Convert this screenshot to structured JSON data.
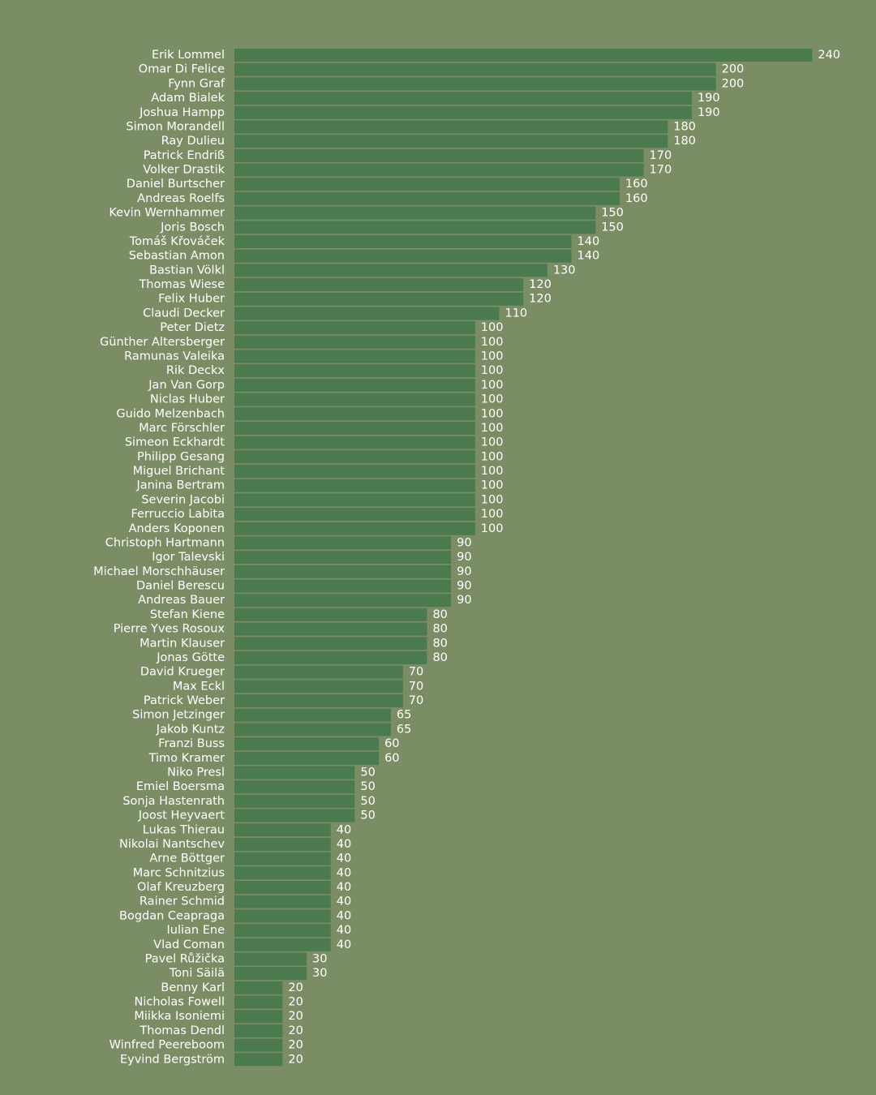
{
  "colors": {
    "background": "#7b8d65",
    "bar": "#4b7a4e",
    "text": "#ffffff"
  },
  "chart_data": {
    "type": "bar",
    "orientation": "horizontal",
    "title": "",
    "xlabel": "",
    "ylabel": "",
    "xlim": [
      0,
      240
    ],
    "grid": false,
    "legend": "none",
    "categories": [
      "Erik Lommel",
      "Omar Di Felice",
      "Fynn Graf",
      "Adam Bialek",
      "Joshua Hampp",
      "Simon Morandell",
      "Ray Dulieu",
      "Patrick Endriß",
      "Volker Drastik",
      "Daniel Burtscher",
      "Andreas Roelfs",
      "Kevin Wernhammer",
      "Joris Bosch",
      "Tomáš Křováček",
      "Sebastian Amon",
      "Bastian Völkl",
      "Thomas Wiese",
      "Felix Huber",
      "Claudi Decker",
      "Peter Dietz",
      "Günther Altersberger",
      "Ramunas Valeika",
      "Rik Deckx",
      "Jan Van Gorp",
      "Niclas Huber",
      "Guido Melzenbach",
      "Marc Förschler",
      "Simeon Eckhardt",
      "Philipp Gesang",
      "Miguel Brichant",
      "Janina Bertram",
      "Severin Jacobi",
      "Ferruccio Labita",
      "Anders Koponen",
      "Christoph Hartmann",
      "Igor Talevski",
      "Michael Morschhäuser",
      "Daniel Berescu",
      "Andreas Bauer",
      "Stefan Kiene",
      "Pierre Yves Rosoux",
      "Martin Klauser",
      "Jonas Götte",
      "David Krueger",
      "Max Eckl",
      "Patrick Weber",
      "Simon Jetzinger",
      "Jakob Kuntz",
      "Franzi Buss",
      "Timo Kramer",
      "Niko Presl",
      "Emiel Boersma",
      "Sonja Hastenrath",
      "Joost Heyvaert",
      "Lukas Thierau",
      "Nikolai Nantschev",
      "Arne Böttger",
      "Marc Schnitzius",
      "Olaf Kreuzberg",
      "Rainer Schmid",
      "Bogdan Ceapraga",
      "Iulian Ene",
      "Vlad Coman",
      "Pavel Růžička",
      "Toni Säilä",
      "Benny Karl",
      "Nicholas Fowell",
      "Miikka Isoniemi",
      "Thomas Dendl",
      "Winfred Peereboom",
      "Eyvind Bergström"
    ],
    "values": [
      240,
      200,
      200,
      190,
      190,
      180,
      180,
      170,
      170,
      160,
      160,
      150,
      150,
      140,
      140,
      130,
      120,
      120,
      110,
      100,
      100,
      100,
      100,
      100,
      100,
      100,
      100,
      100,
      100,
      100,
      100,
      100,
      100,
      100,
      90,
      90,
      90,
      90,
      90,
      80,
      80,
      80,
      80,
      70,
      70,
      70,
      65,
      65,
      60,
      60,
      50,
      50,
      50,
      50,
      40,
      40,
      40,
      40,
      40,
      40,
      40,
      40,
      40,
      30,
      30,
      20,
      20,
      20,
      20,
      20,
      20
    ]
  }
}
